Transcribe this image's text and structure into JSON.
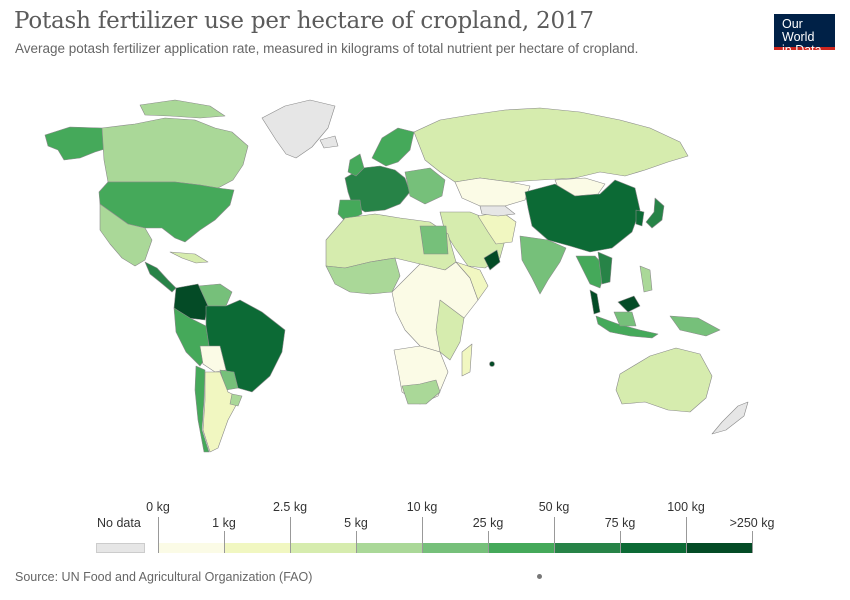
{
  "header": {
    "title": "Potash fertilizer use per hectare of cropland, 2017",
    "subtitle": "Average potash fertilizer application rate, measured in kilograms of total nutrient per hectare of cropland.",
    "logo_line1": "Our World",
    "logo_line2": "in Data"
  },
  "legend": {
    "no_data_label": "No data",
    "no_data_color": "#e6e6e6",
    "upper_labels": [
      "0 kg",
      "2.5 kg",
      "10 kg",
      "50 kg",
      "100 kg"
    ],
    "lower_labels": [
      "1 kg",
      "5 kg",
      "25 kg",
      "75 kg",
      ">250 kg"
    ],
    "bins": [
      {
        "range": "0–1 kg",
        "color": "#fbfbe6"
      },
      {
        "range": "1–2.5 kg",
        "color": "#f1f7c1"
      },
      {
        "range": "2.5–5 kg",
        "color": "#d6ecae"
      },
      {
        "range": "5–10 kg",
        "color": "#aad898"
      },
      {
        "range": "10–25 kg",
        "color": "#76c07a"
      },
      {
        "range": "25–50 kg",
        "color": "#45a95a"
      },
      {
        "range": "50–75 kg",
        "color": "#278347"
      },
      {
        "range": "75–100 kg",
        "color": "#0c6a35"
      },
      {
        "range": "100–250 kg",
        "color": "#044b26"
      }
    ]
  },
  "footer": {
    "source": "Source: UN Food and Agricultural Organization (FAO)"
  },
  "map_regions": [
    {
      "name": "Canada",
      "bin": "5–10 kg"
    },
    {
      "name": "Alaska",
      "bin": "25–50 kg"
    },
    {
      "name": "Greenland",
      "bin": "No data"
    },
    {
      "name": "United States",
      "bin": "25–50 kg"
    },
    {
      "name": "Mexico",
      "bin": "5–10 kg"
    },
    {
      "name": "Colombia",
      "bin": "100–250 kg"
    },
    {
      "name": "Brazil",
      "bin": "75–100 kg"
    },
    {
      "name": "Argentina",
      "bin": "1–2.5 kg"
    },
    {
      "name": "Russia",
      "bin": "2.5–5 kg"
    },
    {
      "name": "China",
      "bin": "75–100 kg"
    },
    {
      "name": "India",
      "bin": "10–25 kg"
    },
    {
      "name": "Malaysia",
      "bin": "100–250 kg"
    },
    {
      "name": "Oman",
      "bin": "100–250 kg"
    },
    {
      "name": "Australia",
      "bin": "2.5–5 kg"
    },
    {
      "name": "South Africa",
      "bin": "5–10 kg"
    }
  ]
}
